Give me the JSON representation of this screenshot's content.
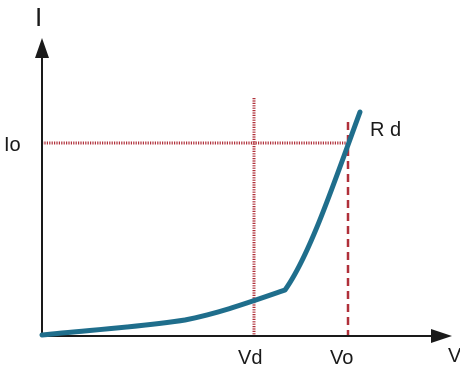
{
  "diagram": {
    "axis_y_label": "I",
    "axis_x_label": "V",
    "current_label": "Io",
    "voltage_d_label": "Vd",
    "voltage_o_label": "Vo",
    "resistance_label": "R d"
  },
  "colors": {
    "curve": "#1f6e8c",
    "guide": "#b0303a",
    "axis": "#1a1a1a"
  }
}
